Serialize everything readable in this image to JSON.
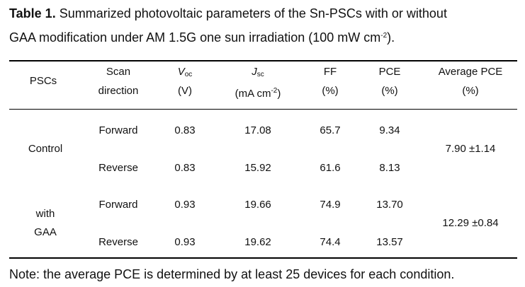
{
  "caption": {
    "label": "Table 1.",
    "line1_text": " Summarized photovoltaic parameters of the Sn-PSCs with or without",
    "line2_text": "GAA modification under AM 1.5G one sun irradiation (100 mW cm",
    "line2_sup": "-2",
    "line2_end": ")."
  },
  "headers": {
    "pscs": "PSCs",
    "scan_1": "Scan",
    "scan_2": "direction",
    "voc_main": "V",
    "voc_sub": "oc",
    "voc_unit": "(V)",
    "jsc_main": "J",
    "jsc_sub": "sc",
    "jsc_unit_pre": "(mA cm",
    "jsc_unit_sup": "-2",
    "jsc_unit_post": ")",
    "ff": "FF",
    "ff_unit": "(%)",
    "pce": "PCE",
    "pce_unit": "(%)",
    "avg": "Average PCE",
    "avg_unit": "(%)"
  },
  "groups": [
    {
      "label_1": "Control",
      "label_2": "",
      "average": "7.90 ±1.14",
      "rows": [
        {
          "scan": "Forward",
          "voc": "0.83",
          "jsc": "17.08",
          "ff": "65.7",
          "pce": "9.34"
        },
        {
          "scan": "Reverse",
          "voc": "0.83",
          "jsc": "15.92",
          "ff": "61.6",
          "pce": "8.13"
        }
      ]
    },
    {
      "label_1": "with",
      "label_2": "GAA",
      "average": "12.29 ±0.84",
      "rows": [
        {
          "scan": "Forward",
          "voc": "0.93",
          "jsc": "19.66",
          "ff": "74.9",
          "pce": "13.70"
        },
        {
          "scan": "Reverse",
          "voc": "0.93",
          "jsc": "19.62",
          "ff": "74.4",
          "pce": "13.57"
        }
      ]
    }
  ],
  "note": "Note: the average PCE is determined by at least 25 devices for each condition."
}
